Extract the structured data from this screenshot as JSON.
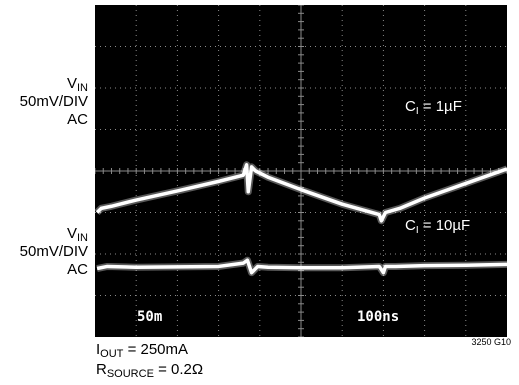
{
  "chart_data": {
    "type": "line",
    "title": "",
    "grid": true,
    "divisions": {
      "x": 10,
      "y": 8
    },
    "axis_labels": {
      "top": {
        "quantity": "V",
        "sub": "IN",
        "scale": "50mV/DIV",
        "coupling": "AC"
      },
      "bottom": {
        "quantity": "V",
        "sub": "IN",
        "scale": "50mV/DIV",
        "coupling": "AC"
      }
    },
    "x_scale_label": "100ns",
    "y_scale_label": "50m",
    "series": [
      {
        "label_main": "C",
        "label_sub": "I",
        "label_rest": " = 1µF",
        "x_div": [
          0.05,
          0.15,
          0.4,
          1.0,
          2.0,
          3.0,
          3.6,
          3.68,
          3.72,
          3.8,
          3.9,
          4.2,
          5.0,
          6.0,
          6.9,
          6.95,
          7.05,
          7.4,
          8.0,
          9.0,
          10.0
        ],
        "y_div": [
          -1.0,
          -0.9,
          -0.85,
          -0.7,
          -0.48,
          -0.25,
          -0.1,
          0.15,
          -0.5,
          0.1,
          0.0,
          -0.15,
          -0.45,
          -0.8,
          -1.05,
          -1.2,
          -1.0,
          -0.9,
          -0.65,
          -0.3,
          0.05
        ]
      },
      {
        "label_main": "C",
        "label_sub": "I",
        "label_rest": " = 10µF",
        "x_div": [
          0.05,
          0.3,
          1.0,
          2.0,
          3.0,
          3.6,
          3.7,
          3.8,
          3.95,
          4.2,
          5.0,
          6.0,
          6.9,
          7.0,
          7.05,
          7.3,
          8.0,
          9.0,
          10.0
        ],
        "y_div": [
          -2.35,
          -2.3,
          -2.32,
          -2.31,
          -2.3,
          -2.22,
          -2.15,
          -2.45,
          -2.3,
          -2.32,
          -2.33,
          -2.33,
          -2.3,
          -2.45,
          -2.3,
          -2.3,
          -2.28,
          -2.27,
          -2.25
        ]
      }
    ]
  },
  "footer": {
    "line1_main": "I",
    "line1_sub": "OUT",
    "line1_rest": " = 250mA",
    "line2_main": "R",
    "line2_sub": "SOURCE",
    "line2_rest": " = 0.2Ω"
  },
  "figure_code": "3250 G10",
  "colors": {
    "screen": "#000000",
    "trace": "#ffffff",
    "grid": "#8a8a8a"
  }
}
